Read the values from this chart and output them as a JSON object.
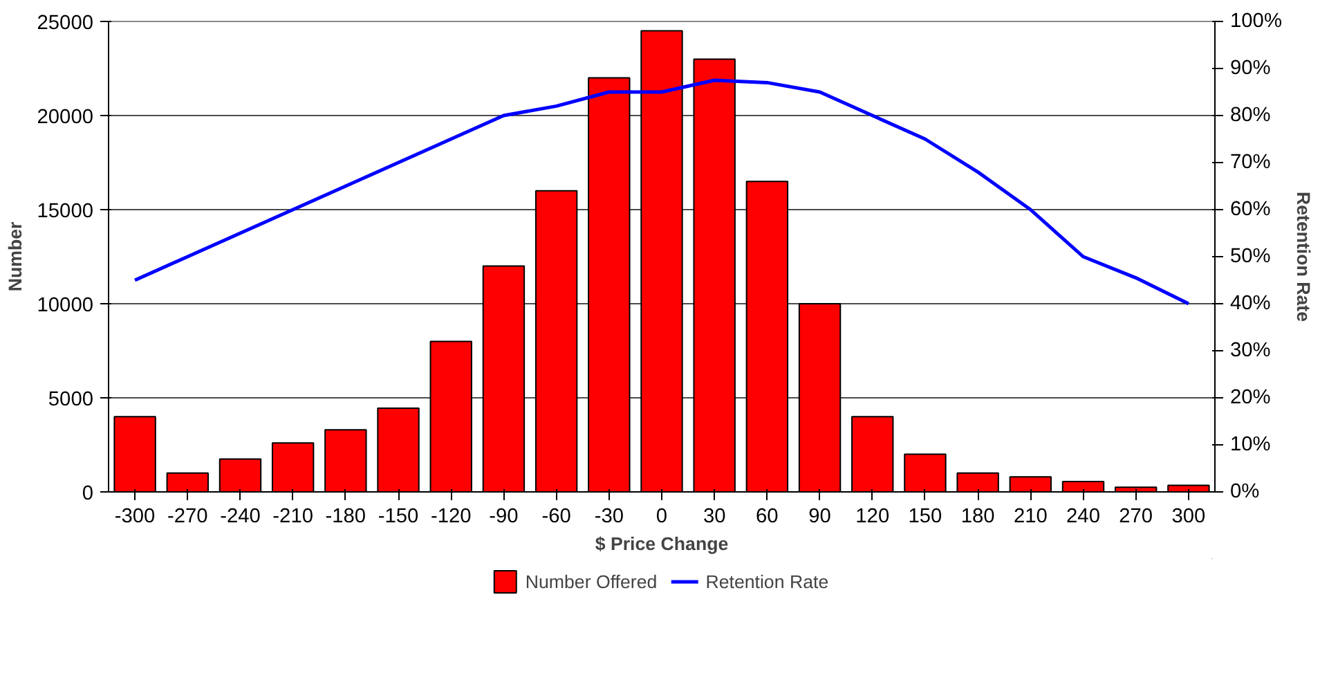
{
  "chart_data": {
    "type": "bar",
    "xlabel": "$ Price Change",
    "ylabel": "Number",
    "y2label": "Retention Rate",
    "categories": [
      "-300",
      "-270",
      "-240",
      "-210",
      "-180",
      "-150",
      "-120",
      "-90",
      "-60",
      "-30",
      "0",
      "30",
      "60",
      "90",
      "120",
      "150",
      "180",
      "210",
      "240",
      "270",
      "300"
    ],
    "series": [
      {
        "name": "Number Offered",
        "color": "#ff0000",
        "values": [
          4000,
          1000,
          1750,
          2600,
          3300,
          4450,
          8000,
          12000,
          16000,
          22000,
          24500,
          23000,
          16500,
          10000,
          4000,
          2000,
          1000,
          800,
          550,
          250,
          350
        ]
      },
      {
        "name": "Retention Rate",
        "type": "line",
        "axis": "y2",
        "color": "#0000ff",
        "values": [
          45,
          50,
          55,
          60,
          65,
          70,
          75,
          80,
          82,
          85,
          85,
          87.5,
          87,
          85,
          80,
          75,
          68,
          60,
          50,
          45.5,
          40
        ]
      }
    ],
    "ylim": [
      0,
      25000
    ],
    "yticks": [
      0,
      5000,
      10000,
      15000,
      20000,
      25000
    ],
    "y2lim": [
      0,
      100
    ],
    "y2ticks": [
      {
        "value": 0,
        "label": "0%"
      },
      {
        "value": 10,
        "label": "10%"
      },
      {
        "value": 20,
        "label": "20%"
      },
      {
        "value": 30,
        "label": "30%"
      },
      {
        "value": 40,
        "label": "40%"
      },
      {
        "value": 50,
        "label": "50%"
      },
      {
        "value": 60,
        "label": "60%"
      },
      {
        "value": 70,
        "label": "70%"
      },
      {
        "value": 80,
        "label": "80%"
      },
      {
        "value": 90,
        "label": "90%"
      },
      {
        "value": 100,
        "label": "100%"
      }
    ],
    "grid": "y",
    "legend": "bottom",
    "marker": "none",
    "line_style": "solid"
  }
}
